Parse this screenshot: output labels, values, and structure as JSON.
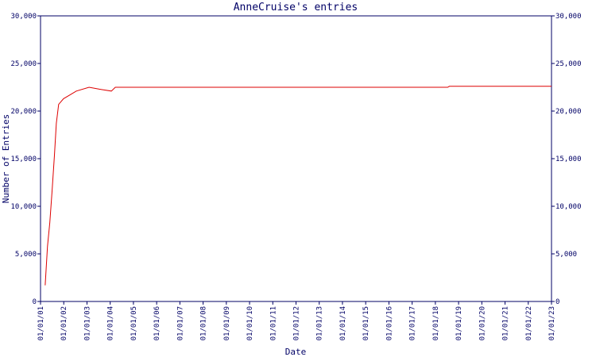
{
  "chart_data": {
    "type": "line",
    "title": "AnneCruise's entries",
    "x_label": "Date",
    "y_label": "Number of Entries",
    "x": [
      2001.2,
      2001.3,
      2001.4,
      2001.5,
      2001.6,
      2001.68,
      2001.78,
      2001.99,
      2002.27,
      2002.54,
      2003.09,
      2003.53,
      2004.05,
      2004.22,
      2018.53,
      2018.6,
      2023
    ],
    "series": [
      {
        "name": "AnneCruise",
        "color": "#dd0000",
        "values": [
          1700,
          5800,
          8300,
          11700,
          15400,
          18700,
          20700,
          21300,
          21700,
          22100,
          22500,
          22300,
          22100,
          22500,
          22500,
          22600,
          22600
        ]
      }
    ],
    "xlim": [
      2001,
      2023
    ],
    "xticks": [
      {
        "value": 2001,
        "label": "01/01/01"
      },
      {
        "value": 2002,
        "label": "01/01/02"
      },
      {
        "value": 2003,
        "label": "01/01/03"
      },
      {
        "value": 2004,
        "label": "01/01/04"
      },
      {
        "value": 2005,
        "label": "01/01/05"
      },
      {
        "value": 2006,
        "label": "01/01/06"
      },
      {
        "value": 2007,
        "label": "01/01/07"
      },
      {
        "value": 2008,
        "label": "01/01/08"
      },
      {
        "value": 2009,
        "label": "01/01/09"
      },
      {
        "value": 2010,
        "label": "01/01/10"
      },
      {
        "value": 2011,
        "label": "01/01/11"
      },
      {
        "value": 2012,
        "label": "01/01/12"
      },
      {
        "value": 2013,
        "label": "01/01/13"
      },
      {
        "value": 2014,
        "label": "01/01/14"
      },
      {
        "value": 2015,
        "label": "01/01/15"
      },
      {
        "value": 2016,
        "label": "01/01/16"
      },
      {
        "value": 2017,
        "label": "01/01/17"
      },
      {
        "value": 2018,
        "label": "01/01/18"
      },
      {
        "value": 2019,
        "label": "01/01/19"
      },
      {
        "value": 2020,
        "label": "01/01/20"
      },
      {
        "value": 2021,
        "label": "01/01/21"
      },
      {
        "value": 2022,
        "label": "01/01/22"
      },
      {
        "value": 2023,
        "label": "01/01/23"
      }
    ],
    "ylim": [
      0,
      30000
    ],
    "yticks": [
      0,
      {
        "value": 5000,
        "label": "5,000"
      },
      {
        "value": 10000,
        "label": "10,000"
      },
      {
        "value": 15000,
        "label": "15,000"
      },
      {
        "value": 20000,
        "label": "20,000"
      },
      {
        "value": 25000,
        "label": "25,000"
      },
      {
        "value": 30000,
        "label": "30,000"
      }
    ],
    "axis_color": "#000066"
  }
}
